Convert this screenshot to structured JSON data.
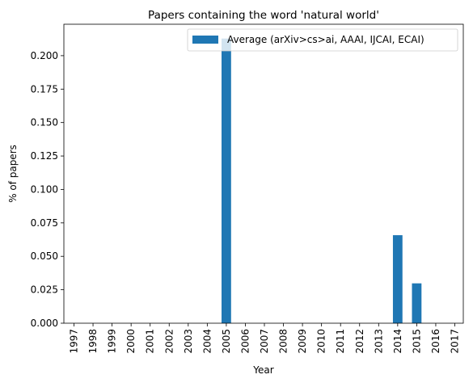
{
  "chart_data": {
    "type": "bar",
    "title": "Papers containing the word 'natural world'",
    "xlabel": "Year",
    "ylabel": "% of papers",
    "ylim": [
      0,
      0.2235
    ],
    "yticks": [
      "0.000",
      "0.025",
      "0.050",
      "0.075",
      "0.100",
      "0.125",
      "0.150",
      "0.175",
      "0.200"
    ],
    "categories": [
      "1997",
      "1998",
      "1999",
      "2000",
      "2001",
      "2002",
      "2003",
      "2004",
      "2005",
      "2006",
      "2007",
      "2008",
      "2009",
      "2010",
      "2011",
      "2012",
      "2013",
      "2014",
      "2015",
      "2016",
      "2017"
    ],
    "series": [
      {
        "name": "Average (arXiv>cs>ai, AAAI, IJCAI, ECAI)",
        "color": "#1f77b4",
        "values": [
          0,
          0,
          0,
          0,
          0,
          0,
          0,
          0,
          0.2128,
          0,
          0,
          0,
          0,
          0,
          0,
          0,
          0,
          0.0658,
          0.0298,
          0,
          0
        ]
      }
    ],
    "legend": "top-right",
    "grid": false
  }
}
